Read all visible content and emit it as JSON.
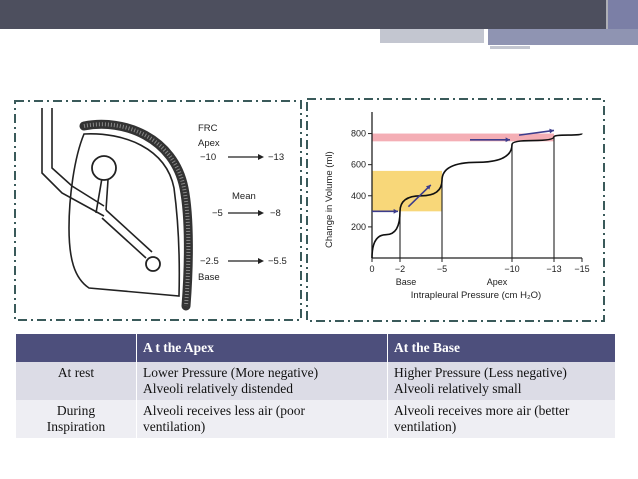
{
  "lung_diagram": {
    "labels": {
      "frc": "FRC",
      "apex": "Apex",
      "apex_from": "−10",
      "apex_to": "−13",
      "mean": "Mean",
      "mean_from": "−5",
      "mean_to": "−8",
      "base_from": "−2.5",
      "base_to": "−5.5",
      "base": "Base"
    }
  },
  "compliance_curve": {
    "ylabel": "Change in Volume (ml)",
    "xlabel": "Intrapleural Pressure (cm H₂O)",
    "y_ticks": [
      "800",
      "600",
      "400",
      "200"
    ],
    "x_ticks": [
      "0",
      "−2",
      "−5",
      "−10",
      "−13",
      "−15"
    ],
    "x_sublabels": {
      "base": "Base",
      "apex": "Apex"
    }
  },
  "chart_data": {
    "type": "line",
    "xlabel": "Intrapleural Pressure (cm H₂O)",
    "ylabel": "Change in Volume (ml)",
    "x": [
      0,
      -2,
      -5,
      -10,
      -13,
      -15
    ],
    "series": [
      {
        "values": [
          0,
          300,
          500,
          730,
          780,
          800
        ]
      }
    ],
    "ylim": [
      0,
      900
    ],
    "xlim": [
      0,
      -15
    ],
    "highlights": [
      {
        "color": "#f2a0a8",
        "y_range": [
          750,
          800
        ]
      },
      {
        "color": "#f7d36a",
        "y_range": [
          300,
          560
        ]
      }
    ]
  },
  "table": {
    "headers": [
      "",
      "A t the Apex",
      "At the Base"
    ],
    "rows": [
      {
        "label": "At rest",
        "apex": [
          "Lower Pressure (More negative)",
          "Alveoli relatively distended"
        ],
        "base": [
          "Higher Pressure (Less negative)",
          "Alveoli relatively small"
        ]
      },
      {
        "label": [
          "During",
          "Inspiration"
        ],
        "apex": [
          "Alveoli receives less air (poor",
          "ventilation)"
        ],
        "base": [
          "Alveoli receives more air (better",
          "ventilation)"
        ]
      }
    ]
  },
  "colors": {
    "header_bar": "#4d4f5e",
    "table_header": "#4d4f7c",
    "row_dark": "#dcdce6",
    "row_light": "#eeeef3",
    "arrow": "#3c3c8c"
  }
}
